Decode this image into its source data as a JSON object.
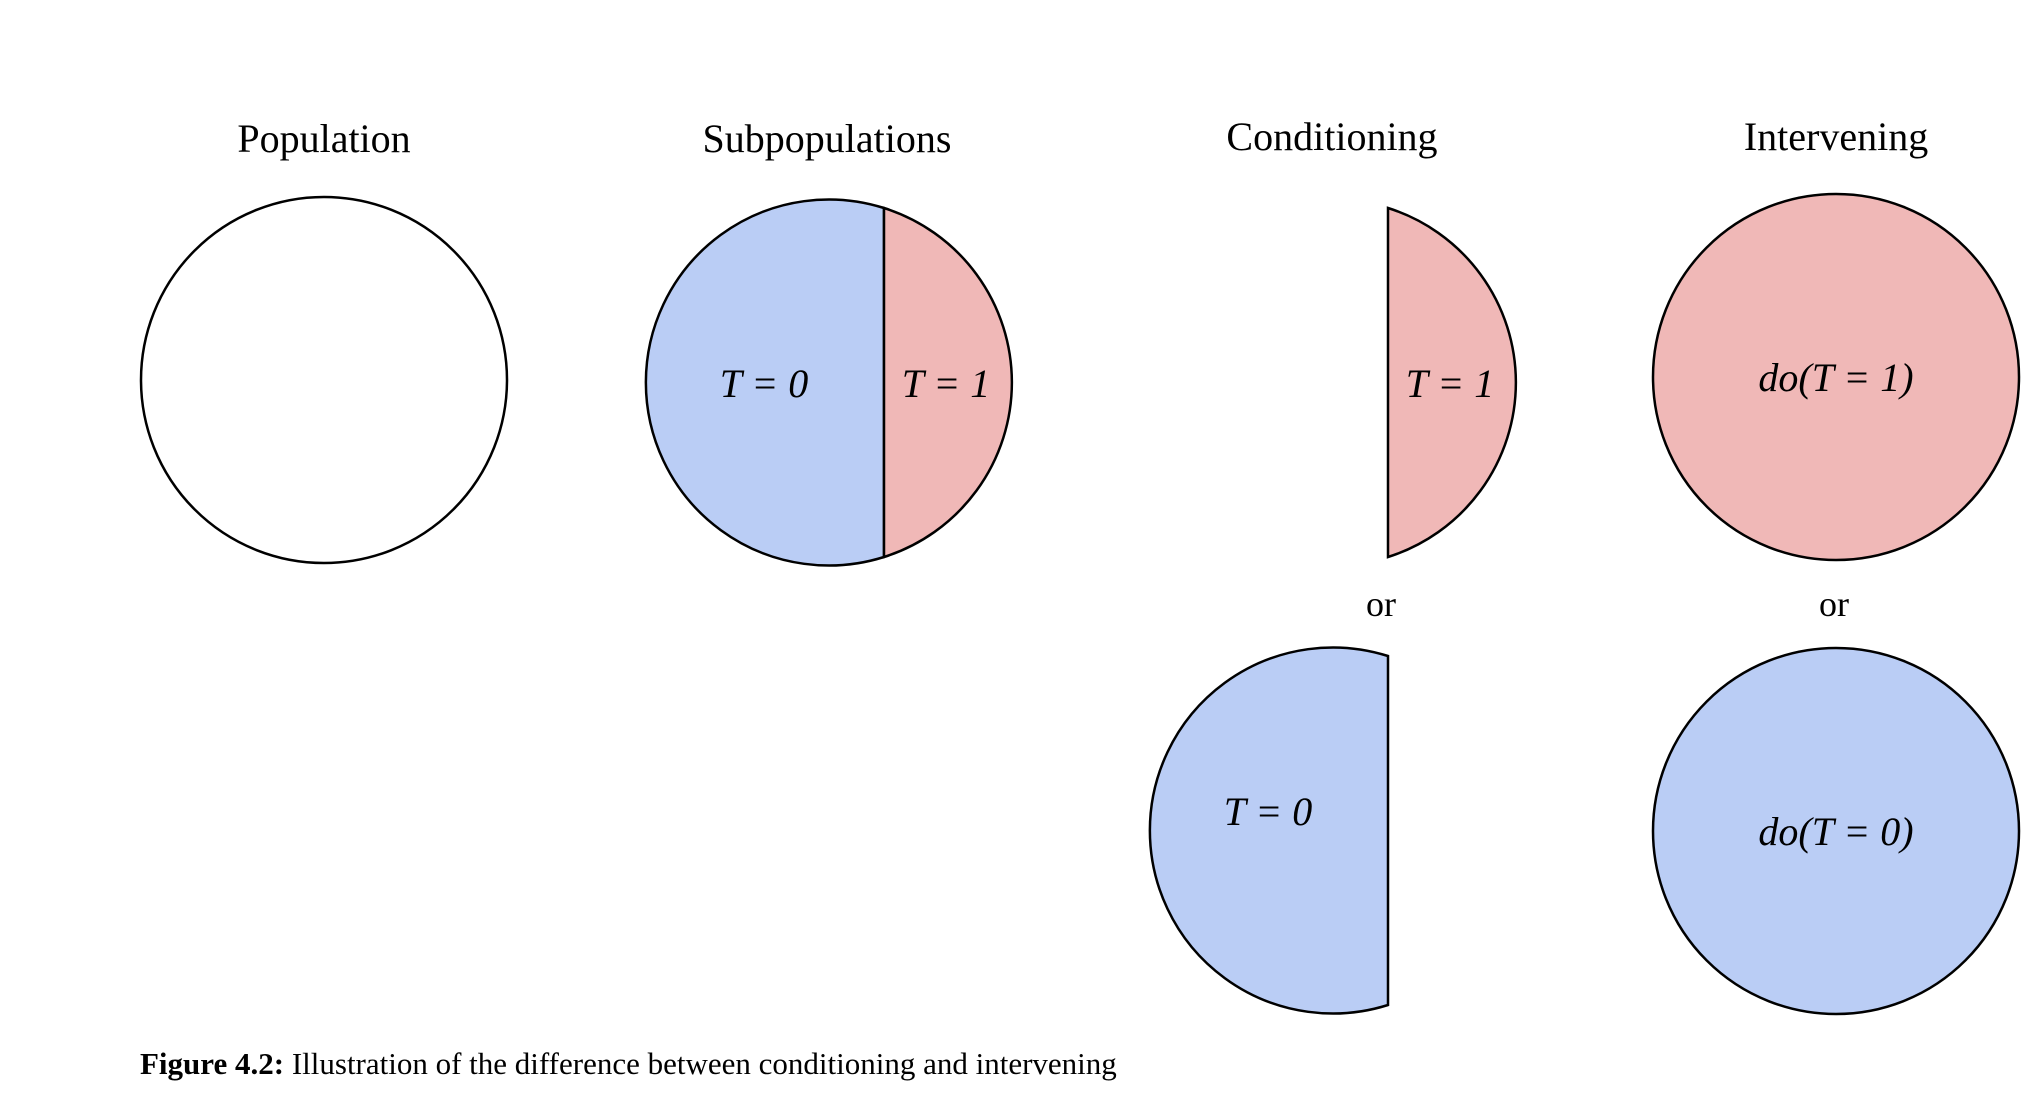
{
  "colors": {
    "treated": "#f0b8b7",
    "control": "#bacdf5",
    "population": "#ffffff",
    "stroke": "#000000"
  },
  "titles": {
    "population": "Population",
    "subpopulations": "Subpopulations",
    "conditioning": "Conditioning",
    "intervening": "Intervening"
  },
  "labels": {
    "sub_t0": "T = 0",
    "sub_t1": "T = 1",
    "cond_t1": "T = 1",
    "cond_t0": "T = 0",
    "int_do1": "do(T = 1)",
    "int_do0": "do(T = 0)"
  },
  "or_cond": "or",
  "or_int": "or",
  "caption": {
    "label": "Figure 4.2:",
    "text": "Illustration of the difference between conditioning and intervening"
  }
}
